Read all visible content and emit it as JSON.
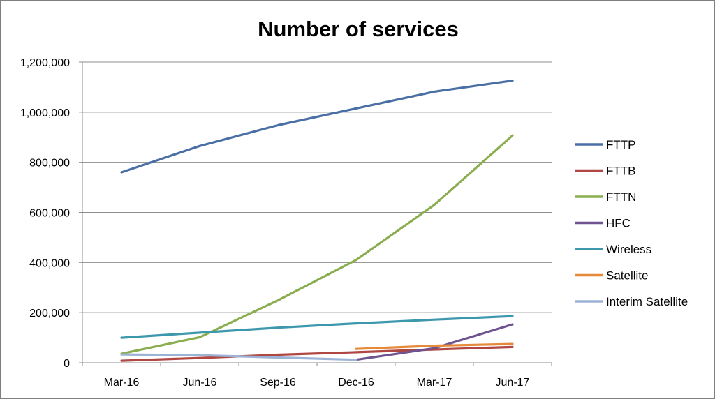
{
  "chart_data": {
    "type": "line",
    "title": "Number of services",
    "xlabel": "",
    "ylabel": "",
    "categories": [
      "Mar-16",
      "Jun-16",
      "Sep-16",
      "Dec-16",
      "Mar-17",
      "Jun-17"
    ],
    "yticks": [
      "0",
      "200,000",
      "400,000",
      "600,000",
      "800,000",
      "1,000,000",
      "1,200,000"
    ],
    "ylim": [
      0,
      1200000
    ],
    "grid": true,
    "legend": "right",
    "series": [
      {
        "name": "FTTP",
        "color": "#4a6fa5",
        "values": [
          760000,
          865000,
          948000,
          1015000,
          1082000,
          1126000
        ]
      },
      {
        "name": "FTTB",
        "color": "#b04743",
        "values": [
          8000,
          19000,
          32000,
          42000,
          53000,
          63000
        ]
      },
      {
        "name": "FTTN",
        "color": "#8aad4f",
        "values": [
          36000,
          102000,
          249000,
          410000,
          630000,
          907000
        ]
      },
      {
        "name": "HFC",
        "color": "#6f548f",
        "values": [
          null,
          null,
          null,
          12000,
          58000,
          153000
        ]
      },
      {
        "name": "Wireless",
        "color": "#3d98ad",
        "values": [
          100000,
          120000,
          140000,
          157000,
          172000,
          186000
        ]
      },
      {
        "name": "Satellite",
        "color": "#e58a3b",
        "values": [
          null,
          null,
          null,
          55000,
          68000,
          75000
        ]
      },
      {
        "name": "Interim Satellite",
        "color": "#9db3d6",
        "values": [
          33000,
          30000,
          21000,
          12000,
          null,
          null
        ]
      }
    ]
  }
}
